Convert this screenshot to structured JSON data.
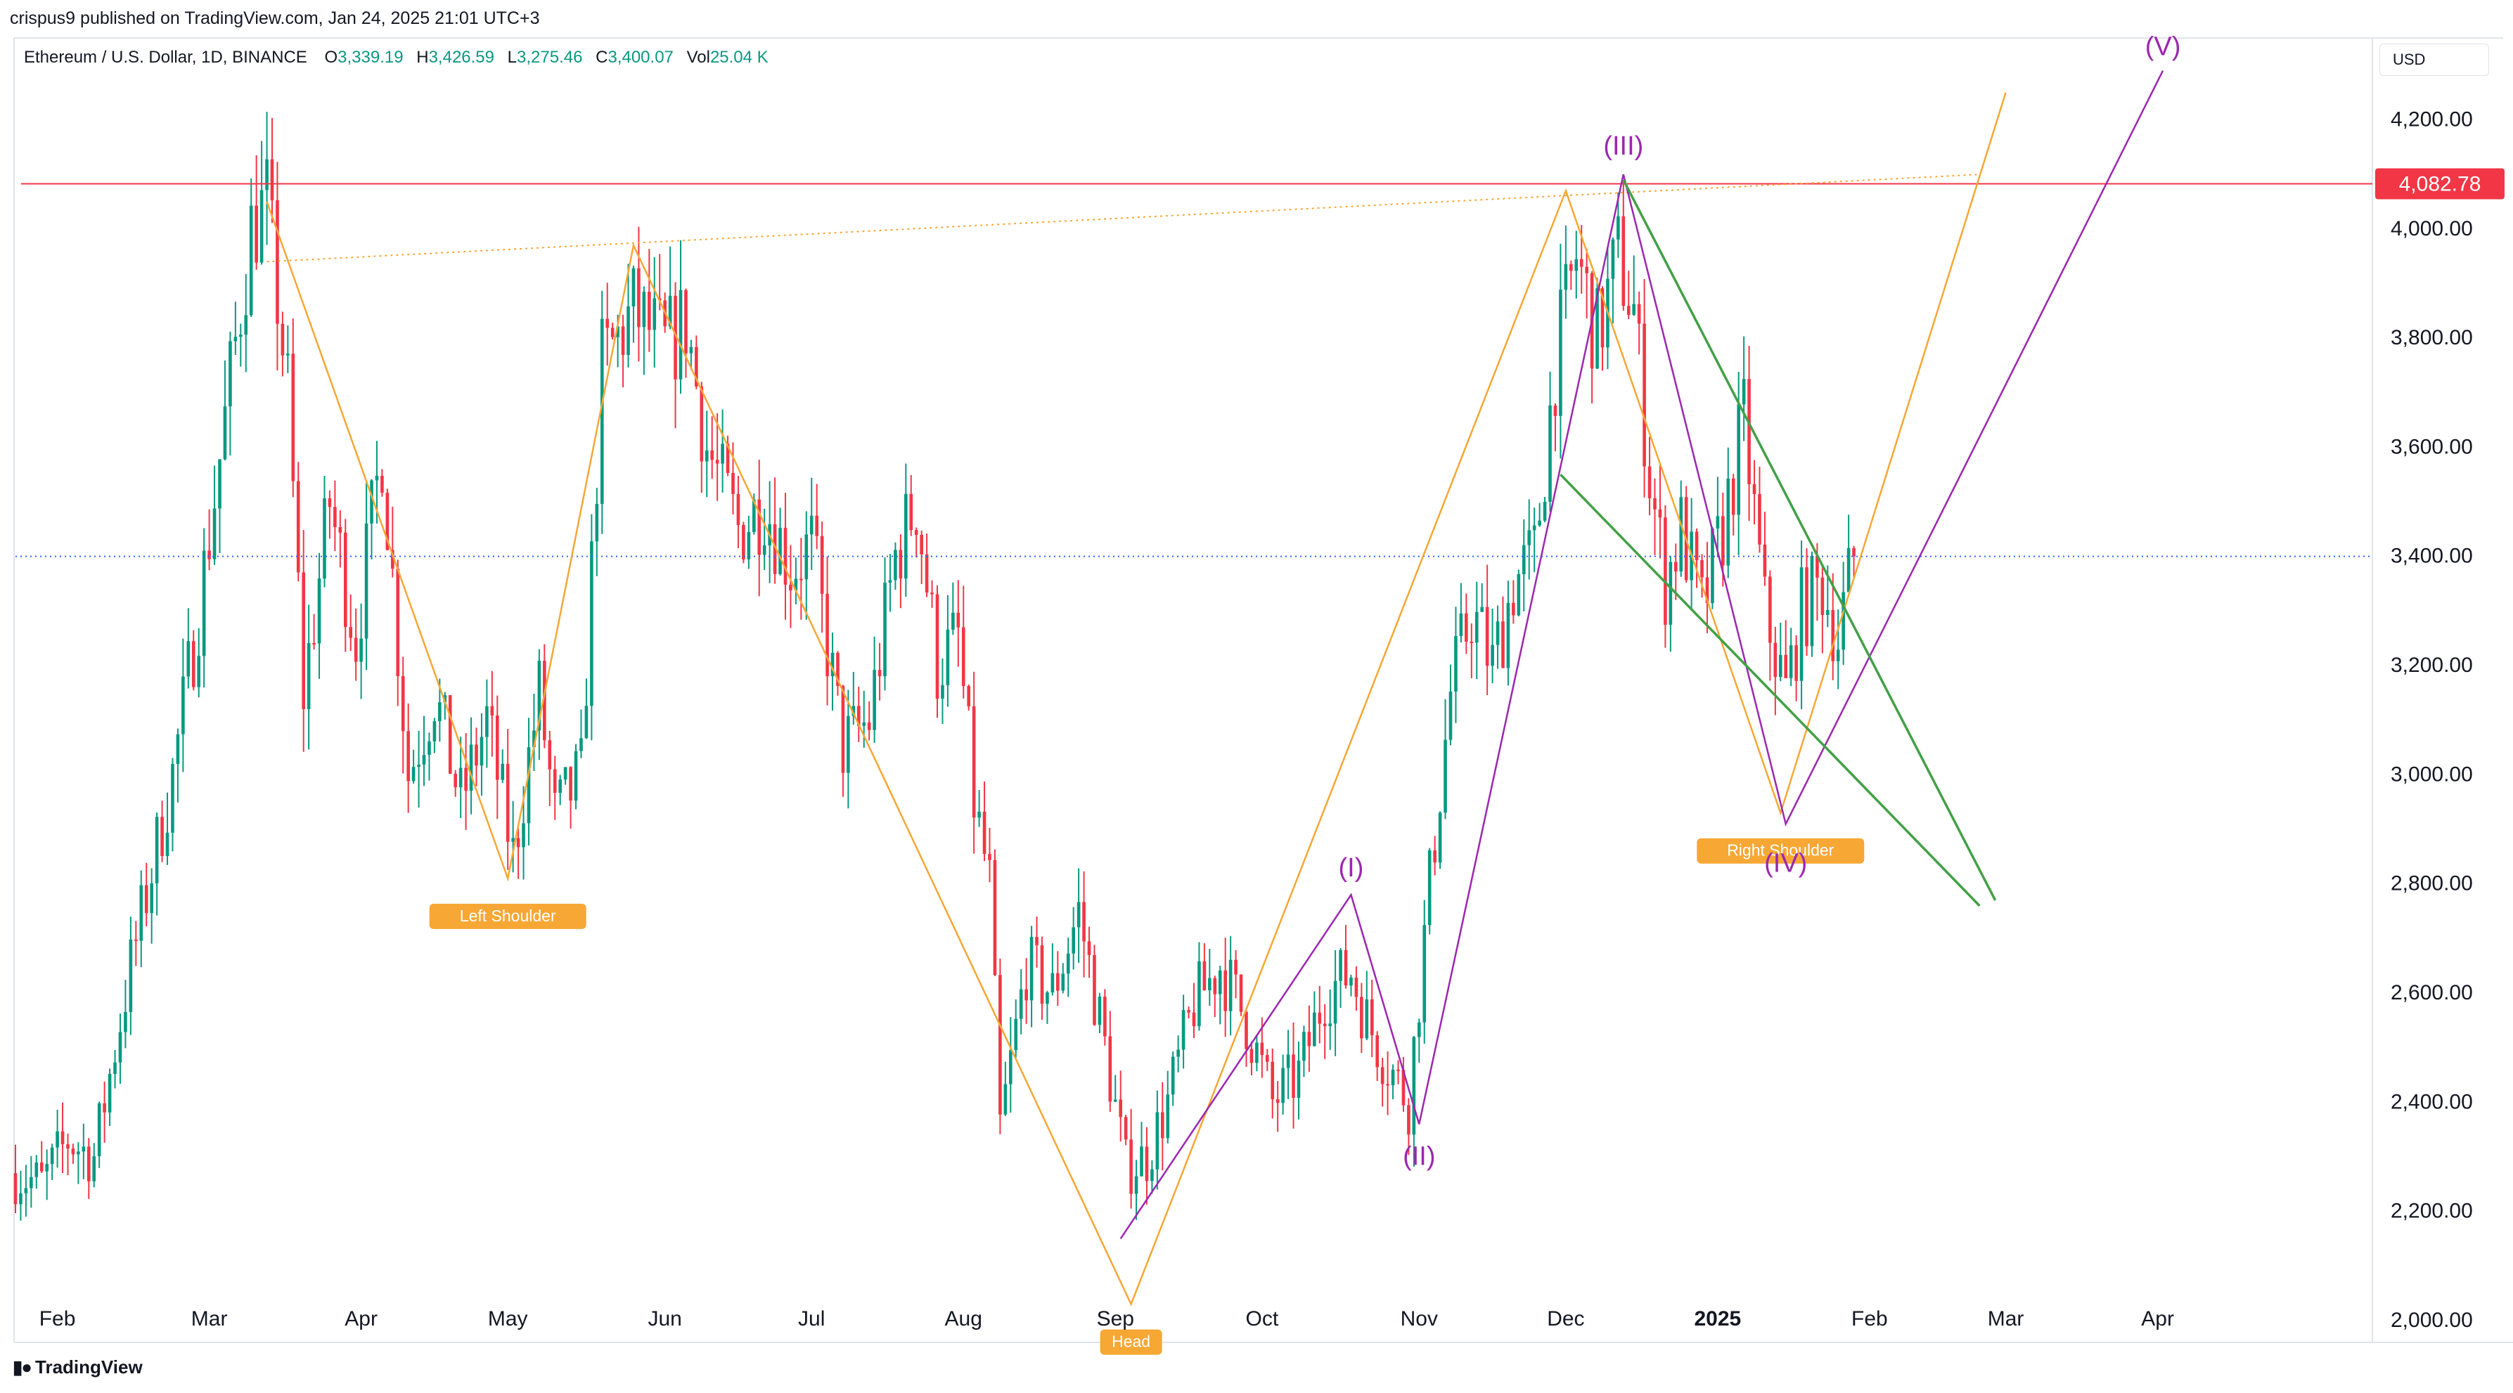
{
  "header": {
    "published": "crispus9 published on TradingView.com, Jan 24, 2025 21:01 UTC+3"
  },
  "legend": {
    "symbol": "Ethereum / U.S. Dollar, 1D, BINANCE",
    "o_label": "O",
    "o": "3,339.19",
    "h_label": "H",
    "h": "3,426.59",
    "l_label": "L",
    "l": "3,275.46",
    "c_label": "C",
    "c": "3,400.07",
    "vol_label": "Vol",
    "vol": "25.04 K"
  },
  "currency": "USD",
  "footer": {
    "brand": "TradingView",
    "logo": "tradingview-logo-icon"
  },
  "colors": {
    "up": "#089981",
    "down": "#f23645",
    "orange": "#f7a734",
    "purple": "#9c27b0",
    "green": "#43a047",
    "resistance": "#f23645",
    "price_line": "#2962ff"
  },
  "chart_data": {
    "type": "candlestick",
    "title": "Ethereum / U.S. Dollar, 1D, BINANCE",
    "ylim": [
      1960,
      4350
    ],
    "y_ticks": [
      2000,
      2200,
      2400,
      2600,
      2800,
      3000,
      3200,
      3400,
      3600,
      3800,
      4000,
      4200
    ],
    "y_tick_labels": [
      "2,000.00",
      "2,200.00",
      "2,400.00",
      "2,600.00",
      "2,800.00",
      "3,000.00",
      "3,200.00",
      "3,400.00",
      "3,600.00",
      "3,800.00",
      "4,000.00",
      "4,200.00"
    ],
    "x_range_days": [
      0,
      450
    ],
    "x_ticks": [
      {
        "day": 8,
        "label": "Feb"
      },
      {
        "day": 37,
        "label": "Mar"
      },
      {
        "day": 66,
        "label": "Apr"
      },
      {
        "day": 94,
        "label": "May"
      },
      {
        "day": 124,
        "label": "Jun"
      },
      {
        "day": 152,
        "label": "Jul"
      },
      {
        "day": 181,
        "label": "Aug"
      },
      {
        "day": 210,
        "label": "Sep"
      },
      {
        "day": 238,
        "label": "Oct"
      },
      {
        "day": 268,
        "label": "Nov"
      },
      {
        "day": 296,
        "label": "Dec"
      },
      {
        "day": 325,
        "label": "2025",
        "bold": true
      },
      {
        "day": 354,
        "label": "Feb"
      },
      {
        "day": 380,
        "label": "Mar"
      },
      {
        "day": 409,
        "label": "Apr"
      }
    ],
    "price_anchors": [
      [
        0,
        2270
      ],
      [
        5,
        2250
      ],
      [
        10,
        2330
      ],
      [
        15,
        2300
      ],
      [
        22,
        2650
      ],
      [
        30,
        3000
      ],
      [
        35,
        3300
      ],
      [
        40,
        3650
      ],
      [
        45,
        4000
      ],
      [
        48,
        4050
      ],
      [
        52,
        3700
      ],
      [
        55,
        3150
      ],
      [
        60,
        3500
      ],
      [
        65,
        3250
      ],
      [
        70,
        3600
      ],
      [
        75,
        3000
      ],
      [
        80,
        3150
      ],
      [
        85,
        2950
      ],
      [
        90,
        3100
      ],
      [
        95,
        2850
      ],
      [
        100,
        3150
      ],
      [
        103,
        2920
      ],
      [
        108,
        3000
      ],
      [
        112,
        3750
      ],
      [
        118,
        3850
      ],
      [
        124,
        3780
      ],
      [
        128,
        3830
      ],
      [
        132,
        3600
      ],
      [
        138,
        3450
      ],
      [
        143,
        3500
      ],
      [
        148,
        3380
      ],
      [
        152,
        3420
      ],
      [
        158,
        3050
      ],
      [
        163,
        3100
      ],
      [
        168,
        3400
      ],
      [
        172,
        3500
      ],
      [
        176,
        3200
      ],
      [
        180,
        3250
      ],
      [
        183,
        2950
      ],
      [
        186,
        2800
      ],
      [
        188,
        2350
      ],
      [
        193,
        2650
      ],
      [
        198,
        2600
      ],
      [
        203,
        2750
      ],
      [
        208,
        2500
      ],
      [
        212,
        2280
      ],
      [
        216,
        2300
      ],
      [
        220,
        2400
      ],
      [
        225,
        2580
      ],
      [
        230,
        2650
      ],
      [
        235,
        2550
      ],
      [
        240,
        2400
      ],
      [
        245,
        2450
      ],
      [
        250,
        2600
      ],
      [
        255,
        2640
      ],
      [
        258,
        2550
      ],
      [
        262,
        2470
      ],
      [
        266,
        2400
      ],
      [
        270,
        2800
      ],
      [
        274,
        3150
      ],
      [
        278,
        3300
      ],
      [
        282,
        3200
      ],
      [
        286,
        3350
      ],
      [
        290,
        3400
      ],
      [
        294,
        3750
      ],
      [
        298,
        3950
      ],
      [
        302,
        3800
      ],
      [
        306,
        3950
      ],
      [
        309,
        3850
      ],
      [
        312,
        3550
      ],
      [
        315,
        3350
      ],
      [
        318,
        3450
      ],
      [
        322,
        3300
      ],
      [
        326,
        3450
      ],
      [
        330,
        3650
      ],
      [
        334,
        3300
      ],
      [
        338,
        3150
      ],
      [
        341,
        3300
      ],
      [
        345,
        3350
      ],
      [
        348,
        3250
      ],
      [
        351,
        3400
      ]
    ],
    "current_price": 3400.07,
    "resistance_level": 4082.78,
    "resistance_label": "4,082.78",
    "patterns": {
      "head_and_shoulders": {
        "left_shoulder": {
          "day": 94,
          "price": 2810,
          "label": "Left Shoulder"
        },
        "head": {
          "day": 213,
          "price": 2030,
          "label": "Head"
        },
        "right_shoulder": {
          "day": 337,
          "price": 2930,
          "label": "Right Shoulder"
        },
        "zigzag": [
          [
            48,
            4050
          ],
          [
            94,
            2810
          ],
          [
            118,
            3970
          ],
          [
            213,
            2030
          ],
          [
            296,
            4070
          ],
          [
            337,
            2930
          ],
          [
            380,
            4250
          ]
        ],
        "neckline_start": [
          48,
          3940
        ],
        "neckline_end": [
          375,
          4100
        ]
      },
      "elliott_waves": {
        "points": [
          [
            211,
            2150
          ],
          [
            255,
            2780
          ],
          [
            268,
            2360
          ],
          [
            307,
            4100
          ],
          [
            338,
            2910
          ],
          [
            410,
            4290
          ]
        ],
        "labels": [
          {
            "text": "(I)",
            "day": 255,
            "price": 2780
          },
          {
            "text": "(II)",
            "day": 268,
            "price": 2360
          },
          {
            "text": "(III)",
            "day": 307,
            "price": 4100
          },
          {
            "text": "(IV)",
            "day": 338,
            "price": 2910
          },
          {
            "text": "(V)",
            "day": 410,
            "price": 4290
          }
        ]
      },
      "falling_wedge": {
        "upper": [
          [
            307,
            4090
          ],
          [
            378,
            2770
          ]
        ],
        "lower": [
          [
            295,
            3550
          ],
          [
            375,
            2760
          ]
        ]
      }
    }
  }
}
